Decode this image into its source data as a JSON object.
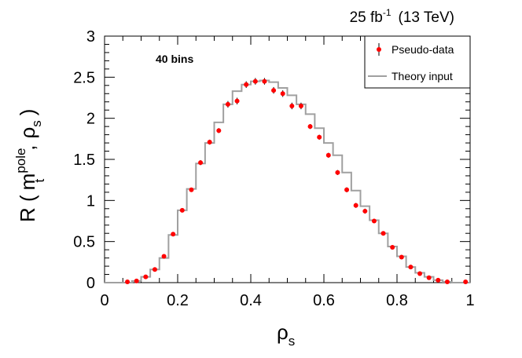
{
  "chart_data": {
    "type": "line",
    "title": "25 fb^-1 (13 TeV)",
    "title_parts": {
      "lumi": "25 fb",
      "lumi_exp": "-1",
      "energy": "(13 TeV)"
    },
    "annotation": "40 bins",
    "xlabel": "ρs",
    "xlabel_parts": {
      "main": "ρ",
      "sub": "s"
    },
    "ylabel": "R ( m_t^pole , ρs )",
    "ylabel_parts": {
      "r": "R (",
      "m": "m",
      "m_sub": "t",
      "m_sup": "pole",
      "sep": ",",
      "rho": "ρ",
      "rho_sub": "s",
      "close": ")"
    },
    "xlim": [
      0,
      1
    ],
    "ylim": [
      0,
      3
    ],
    "x_ticks": [
      0,
      0.2,
      0.4,
      0.6,
      0.8,
      1
    ],
    "x_tick_labels": [
      "0",
      "0.2",
      "0.4",
      "0.6",
      "0.8",
      "1"
    ],
    "y_ticks": [
      0,
      0.5,
      1,
      1.5,
      2,
      2.5,
      3
    ],
    "y_tick_labels": [
      "0",
      "0.5",
      "1",
      "1.5",
      "2",
      "2.5",
      "3"
    ],
    "legend": {
      "placement": "top-right",
      "entries": [
        {
          "label": "Pseudo-data",
          "style": "points",
          "color": "#ff0000"
        },
        {
          "label": "Theory input",
          "style": "line",
          "color": "#a0a0a0"
        }
      ]
    },
    "series": [
      {
        "name": "Theory input",
        "style": "step",
        "color": "#a0a0a0",
        "bin_edges": [
          0,
          0.025,
          0.05,
          0.075,
          0.1,
          0.125,
          0.15,
          0.175,
          0.2,
          0.225,
          0.25,
          0.275,
          0.3,
          0.325,
          0.35,
          0.375,
          0.4,
          0.425,
          0.45,
          0.475,
          0.5,
          0.525,
          0.55,
          0.575,
          0.6,
          0.625,
          0.65,
          0.675,
          0.7,
          0.725,
          0.75,
          0.775,
          0.8,
          0.825,
          0.85,
          0.875,
          0.9,
          0.925,
          0.95,
          0.975,
          1
        ],
        "values": [
          0,
          0,
          0,
          0.02,
          0.07,
          0.16,
          0.3,
          0.58,
          0.88,
          1.14,
          1.45,
          1.7,
          1.95,
          2.17,
          2.33,
          2.41,
          2.45,
          2.46,
          2.44,
          2.37,
          2.28,
          2.17,
          2.05,
          1.88,
          1.7,
          1.55,
          1.34,
          1.12,
          0.93,
          0.76,
          0.6,
          0.44,
          0.32,
          0.19,
          0.12,
          0.07,
          0.03,
          0.01,
          0,
          0
        ]
      },
      {
        "name": "Pseudo-data",
        "style": "points",
        "color": "#ff0000",
        "x": [
          0.0625,
          0.0875,
          0.1125,
          0.1375,
          0.1625,
          0.1875,
          0.2125,
          0.2375,
          0.2625,
          0.2875,
          0.3125,
          0.3375,
          0.3625,
          0.3875,
          0.4125,
          0.4375,
          0.4625,
          0.4875,
          0.5125,
          0.5375,
          0.5625,
          0.5875,
          0.6125,
          0.6375,
          0.6625,
          0.6875,
          0.7125,
          0.7375,
          0.7625,
          0.7875,
          0.8125,
          0.8375,
          0.8625,
          0.8875,
          0.9125,
          0.9375,
          0.9875
        ],
        "y": [
          0.01,
          0.02,
          0.07,
          0.16,
          0.32,
          0.59,
          0.88,
          1.13,
          1.46,
          1.71,
          1.85,
          2.17,
          2.21,
          2.41,
          2.45,
          2.45,
          2.34,
          2.3,
          2.15,
          2.15,
          1.9,
          1.77,
          1.55,
          1.34,
          1.13,
          0.94,
          0.87,
          0.75,
          0.6,
          0.43,
          0.31,
          0.19,
          0.11,
          0.06,
          0.03,
          0.01,
          0.01
        ],
        "err": [
          0.01,
          0.01,
          0.02,
          0.02,
          0.02,
          0.02,
          0.02,
          0.02,
          0.03,
          0.03,
          0.03,
          0.04,
          0.04,
          0.04,
          0.04,
          0.04,
          0.04,
          0.04,
          0.04,
          0.04,
          0.03,
          0.03,
          0.03,
          0.03,
          0.03,
          0.03,
          0.03,
          0.02,
          0.02,
          0.02,
          0.02,
          0.02,
          0.01,
          0.01,
          0.01,
          0.01,
          0.01
        ]
      }
    ],
    "grid": false
  }
}
